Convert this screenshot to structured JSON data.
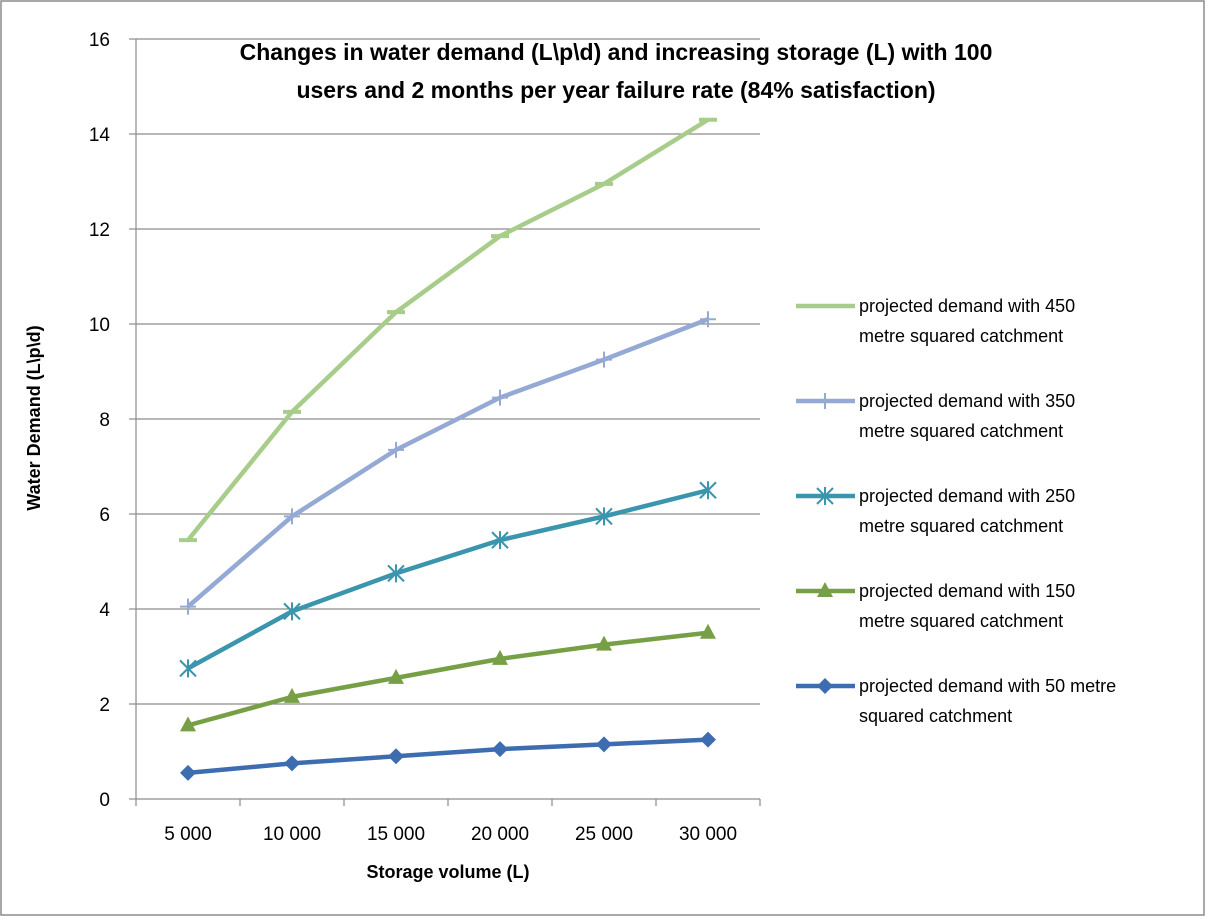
{
  "chart_data": {
    "type": "line",
    "title_lines": [
      "Changes in water demand (L\\p\\d) and increasing storage (L) with 100",
      "users and 2 months per year failure rate (84% satisfaction)"
    ],
    "xlabel": "Storage volume (L)",
    "ylabel": "Water Demand (L\\p\\d)",
    "categories": [
      "5 000",
      "10 000",
      "15 000",
      "20 000",
      "25 000",
      "30 000"
    ],
    "ylim": [
      0,
      16
    ],
    "yticks": [
      0,
      2,
      4,
      6,
      8,
      10,
      12,
      14,
      16
    ],
    "grid": "horizontal",
    "legend_position": "right",
    "series": [
      {
        "name": "projected demand with 450 metre squared catchment",
        "legend_lines": [
          "projected demand with 450",
          "metre squared catchment"
        ],
        "values": [
          5.45,
          8.15,
          10.25,
          11.85,
          12.95,
          14.3
        ],
        "color": "#a8cc8a",
        "marker": "dash"
      },
      {
        "name": "projected demand with 350 metre squared catchment",
        "legend_lines": [
          "projected demand with 350",
          "metre squared catchment"
        ],
        "values": [
          4.05,
          5.95,
          7.35,
          8.45,
          9.25,
          10.1
        ],
        "color": "#95a9d5",
        "marker": "plus"
      },
      {
        "name": "projected demand with 250 metre squared catchment",
        "legend_lines": [
          "projected demand with 250",
          "metre squared catchment"
        ],
        "values": [
          2.75,
          3.95,
          4.75,
          5.45,
          5.95,
          6.5
        ],
        "color": "#3a95ad",
        "marker": "star"
      },
      {
        "name": "projected demand with 150 metre squared catchment",
        "legend_lines": [
          "projected demand with 150",
          "metre squared catchment"
        ],
        "values": [
          1.55,
          2.15,
          2.55,
          2.95,
          3.25,
          3.5
        ],
        "color": "#77a046",
        "marker": "triangle"
      },
      {
        "name": "projected demand with 50 metre squared catchment",
        "legend_lines": [
          "projected demand with 50 metre",
          "squared catchment"
        ],
        "values": [
          0.55,
          0.75,
          0.9,
          1.05,
          1.15,
          1.25
        ],
        "color": "#3d6db0",
        "marker": "diamond"
      }
    ]
  }
}
